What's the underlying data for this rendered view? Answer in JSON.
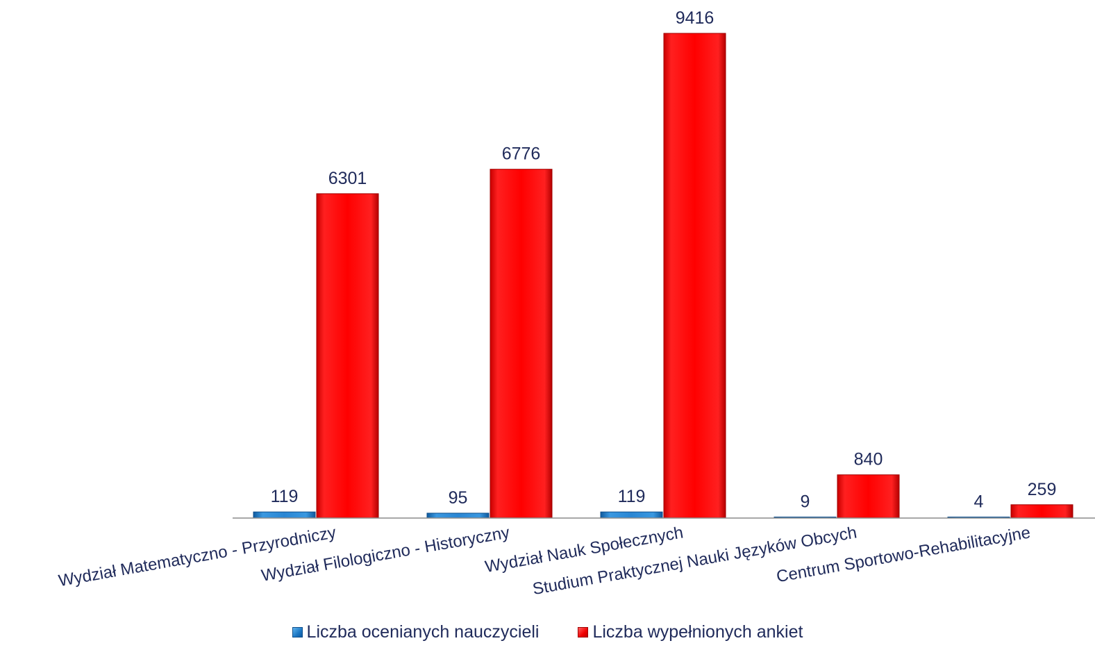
{
  "chart_data": {
    "type": "bar",
    "categories": [
      "Wydział Matematyczno - Przyrodniczy",
      "Wydział  Filologiczno - Historyczny",
      "Wydział Nauk Społecznych",
      "Studium Praktycznej Nauki Języków Obcych",
      "Centrum Sportowo-Rehabilitacyjne"
    ],
    "series": [
      {
        "name": "Liczba ocenianych nauczycieli",
        "values": [
          119,
          95,
          119,
          9,
          4
        ],
        "color": "#1c77c3"
      },
      {
        "name": "Liczba wypełnionych ankiet",
        "values": [
          6301,
          6776,
          9416,
          840,
          259
        ],
        "color": "#f00000"
      }
    ],
    "ylim": [
      0,
      9416
    ],
    "grid": false,
    "legend_position": "bottom"
  }
}
